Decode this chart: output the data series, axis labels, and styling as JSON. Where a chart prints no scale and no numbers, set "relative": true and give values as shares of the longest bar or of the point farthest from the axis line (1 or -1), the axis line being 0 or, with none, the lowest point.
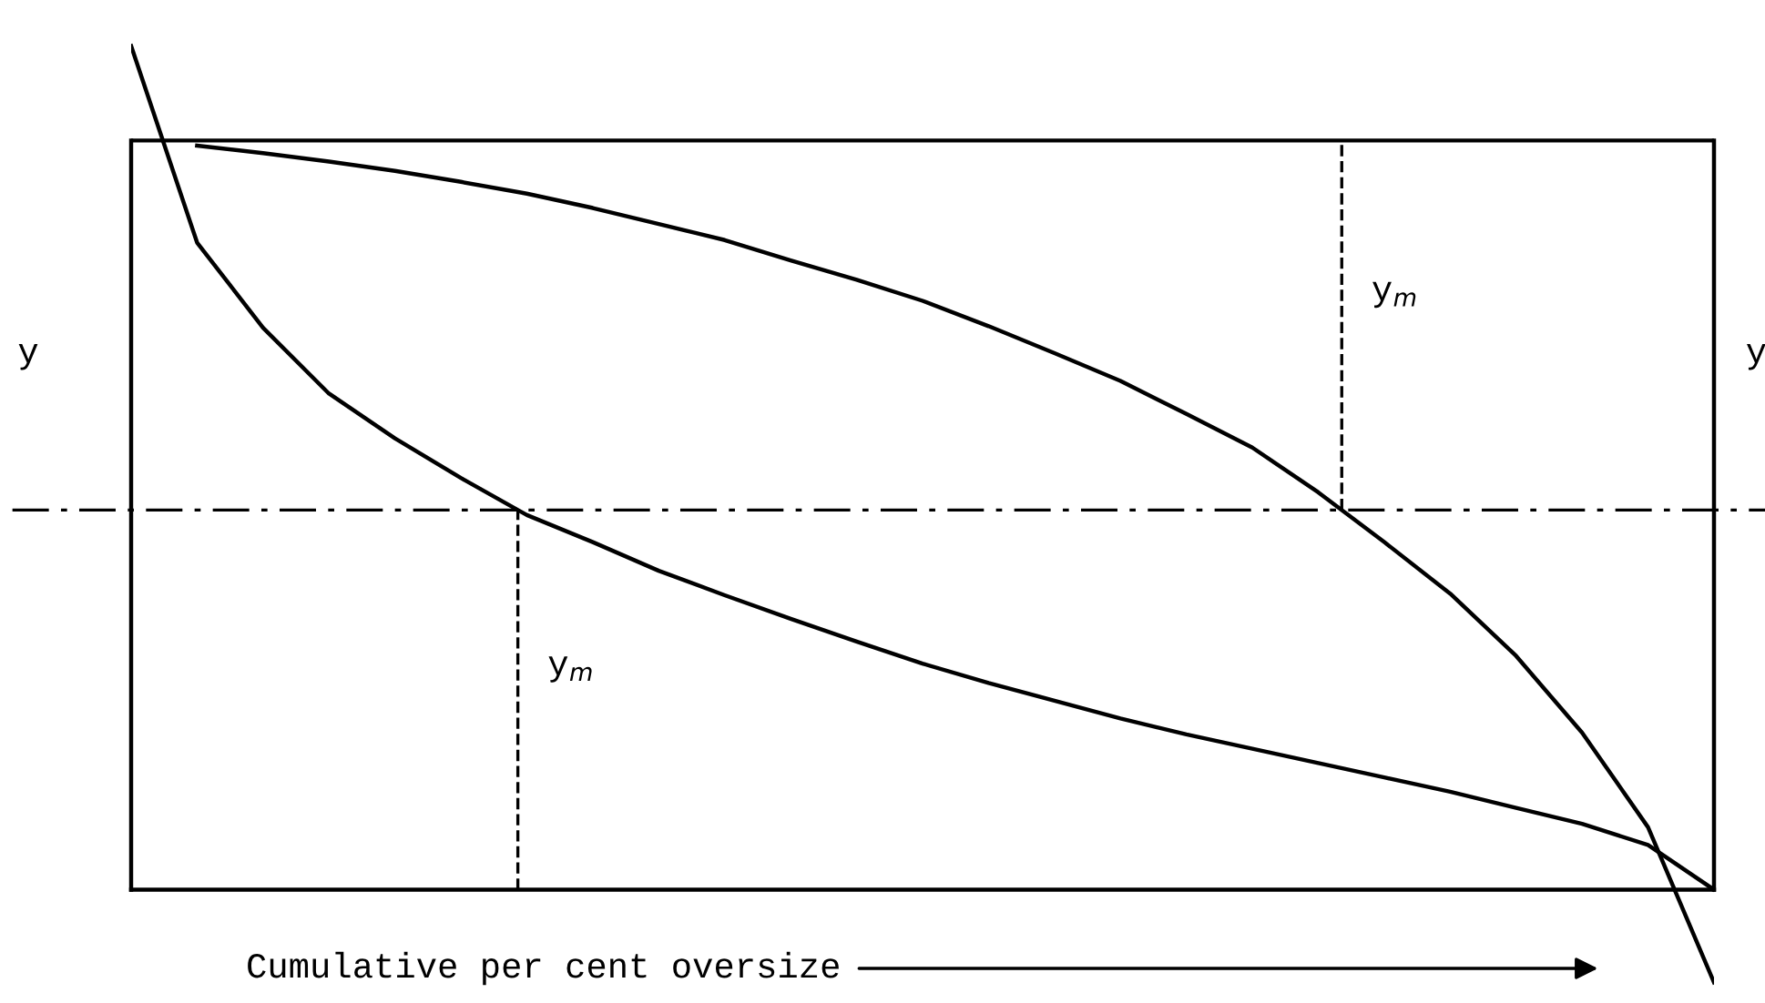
{
  "chart_data": {
    "type": "line",
    "relative": true,
    "xlabel": "Cumulative per cent oversize",
    "categories": [
      null,
      null,
      null,
      null,
      null,
      null,
      null,
      null,
      null,
      null,
      null,
      null,
      null,
      null,
      null,
      null,
      null,
      null,
      null,
      null,
      null,
      null,
      null,
      null,
      null
    ],
    "series": [
      {
        "color": "#000000",
        "values": [
          null,
          0.882,
          0.873,
          0.863,
          0.852,
          0.839,
          0.825,
          0.808,
          0.789,
          0.77,
          0.746,
          0.723,
          0.698,
          0.668,
          0.636,
          0.603,
          0.564,
          0.524,
          0.471,
          0.412,
          0.351,
          0.277,
          0.186,
          0.074,
          -0.11
        ]
      },
      {
        "color": "#000000",
        "values": [
          1.0,
          0.767,
          0.666,
          0.588,
          0.535,
          0.488,
          0.444,
          0.412,
          0.378,
          0.349,
          0.321,
          0.294,
          0.268,
          0.245,
          0.224,
          0.203,
          0.184,
          0.167,
          0.15,
          0.133,
          0.116,
          0.097,
          0.078,
          0.053,
          0.0
        ]
      }
    ],
    "ref_lines": [
      {
        "axis": "y",
        "value": 0.888,
        "color": "#000000",
        "line_style": "solid"
      },
      {
        "axis": "y",
        "value": 0.45,
        "color": "#000000",
        "line_style": "dashed"
      }
    ],
    "annotations": [
      "y",
      "y",
      "y$_{m}$",
      "y$_{m}$"
    ],
    "grid": false,
    "marker": "none",
    "line_style": "solid"
  }
}
